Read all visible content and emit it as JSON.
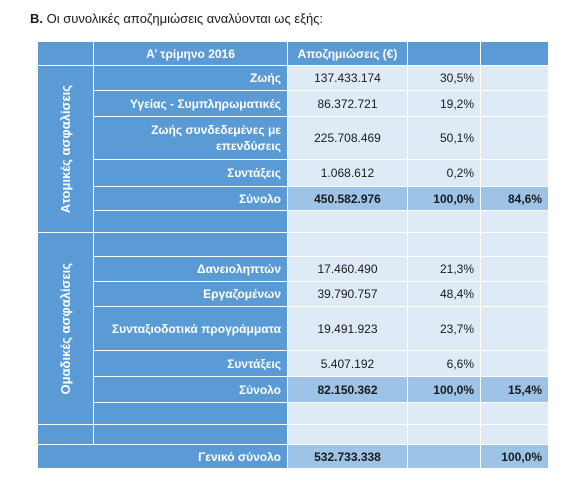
{
  "heading": {
    "lead": "Β.",
    "text": " Οι συνολικές αποζημιώσεις αναλύονται ως εξής:"
  },
  "table": {
    "header": {
      "quarter": "Α’ τρίμηνο 2016",
      "losses": "Αποζημιώσεις (€)"
    },
    "individual": {
      "group_label": "Ατομικές ασφαλίσεις",
      "rows": [
        {
          "label": "Ζωής",
          "value": "137.433.174",
          "pct": "30,5%"
        },
        {
          "label": "Υγείας - Συμπληρωματικές",
          "value": "86.372.721",
          "pct": "19,2%"
        },
        {
          "label": "Ζωής συνδεδεμένες με επενδύσεις",
          "value": "225.708.469",
          "pct": "50,1%"
        },
        {
          "label": "Συντάξεις",
          "value": "1.068.612",
          "pct": "0,2%"
        }
      ],
      "total": {
        "label": "Σύνολο",
        "value": "450.582.976",
        "pct": "100,0%",
        "share": "84,6%"
      }
    },
    "group": {
      "group_label": "Ομαδικές ασφαλίσεις",
      "rows": [
        {
          "label": "Δανειοληπτών",
          "value": "17.460.490",
          "pct": "21,3%"
        },
        {
          "label": "Εργαζομένων",
          "value": "39.790.757",
          "pct": "48,4%"
        },
        {
          "label": "Συνταξιοδοτικά προγράμματα",
          "value": "19.491.923",
          "pct": "23,7%"
        },
        {
          "label": "Συντάξεις",
          "value": "5.407.192",
          "pct": "6,6%"
        }
      ],
      "total": {
        "label": "Σύνολο",
        "value": "82.150.362",
        "pct": "100,0%",
        "share": "15,4%"
      }
    },
    "grand_total": {
      "label": "Γενικό σύνολο",
      "value": "532.733.338",
      "share": "100,0%"
    }
  }
}
